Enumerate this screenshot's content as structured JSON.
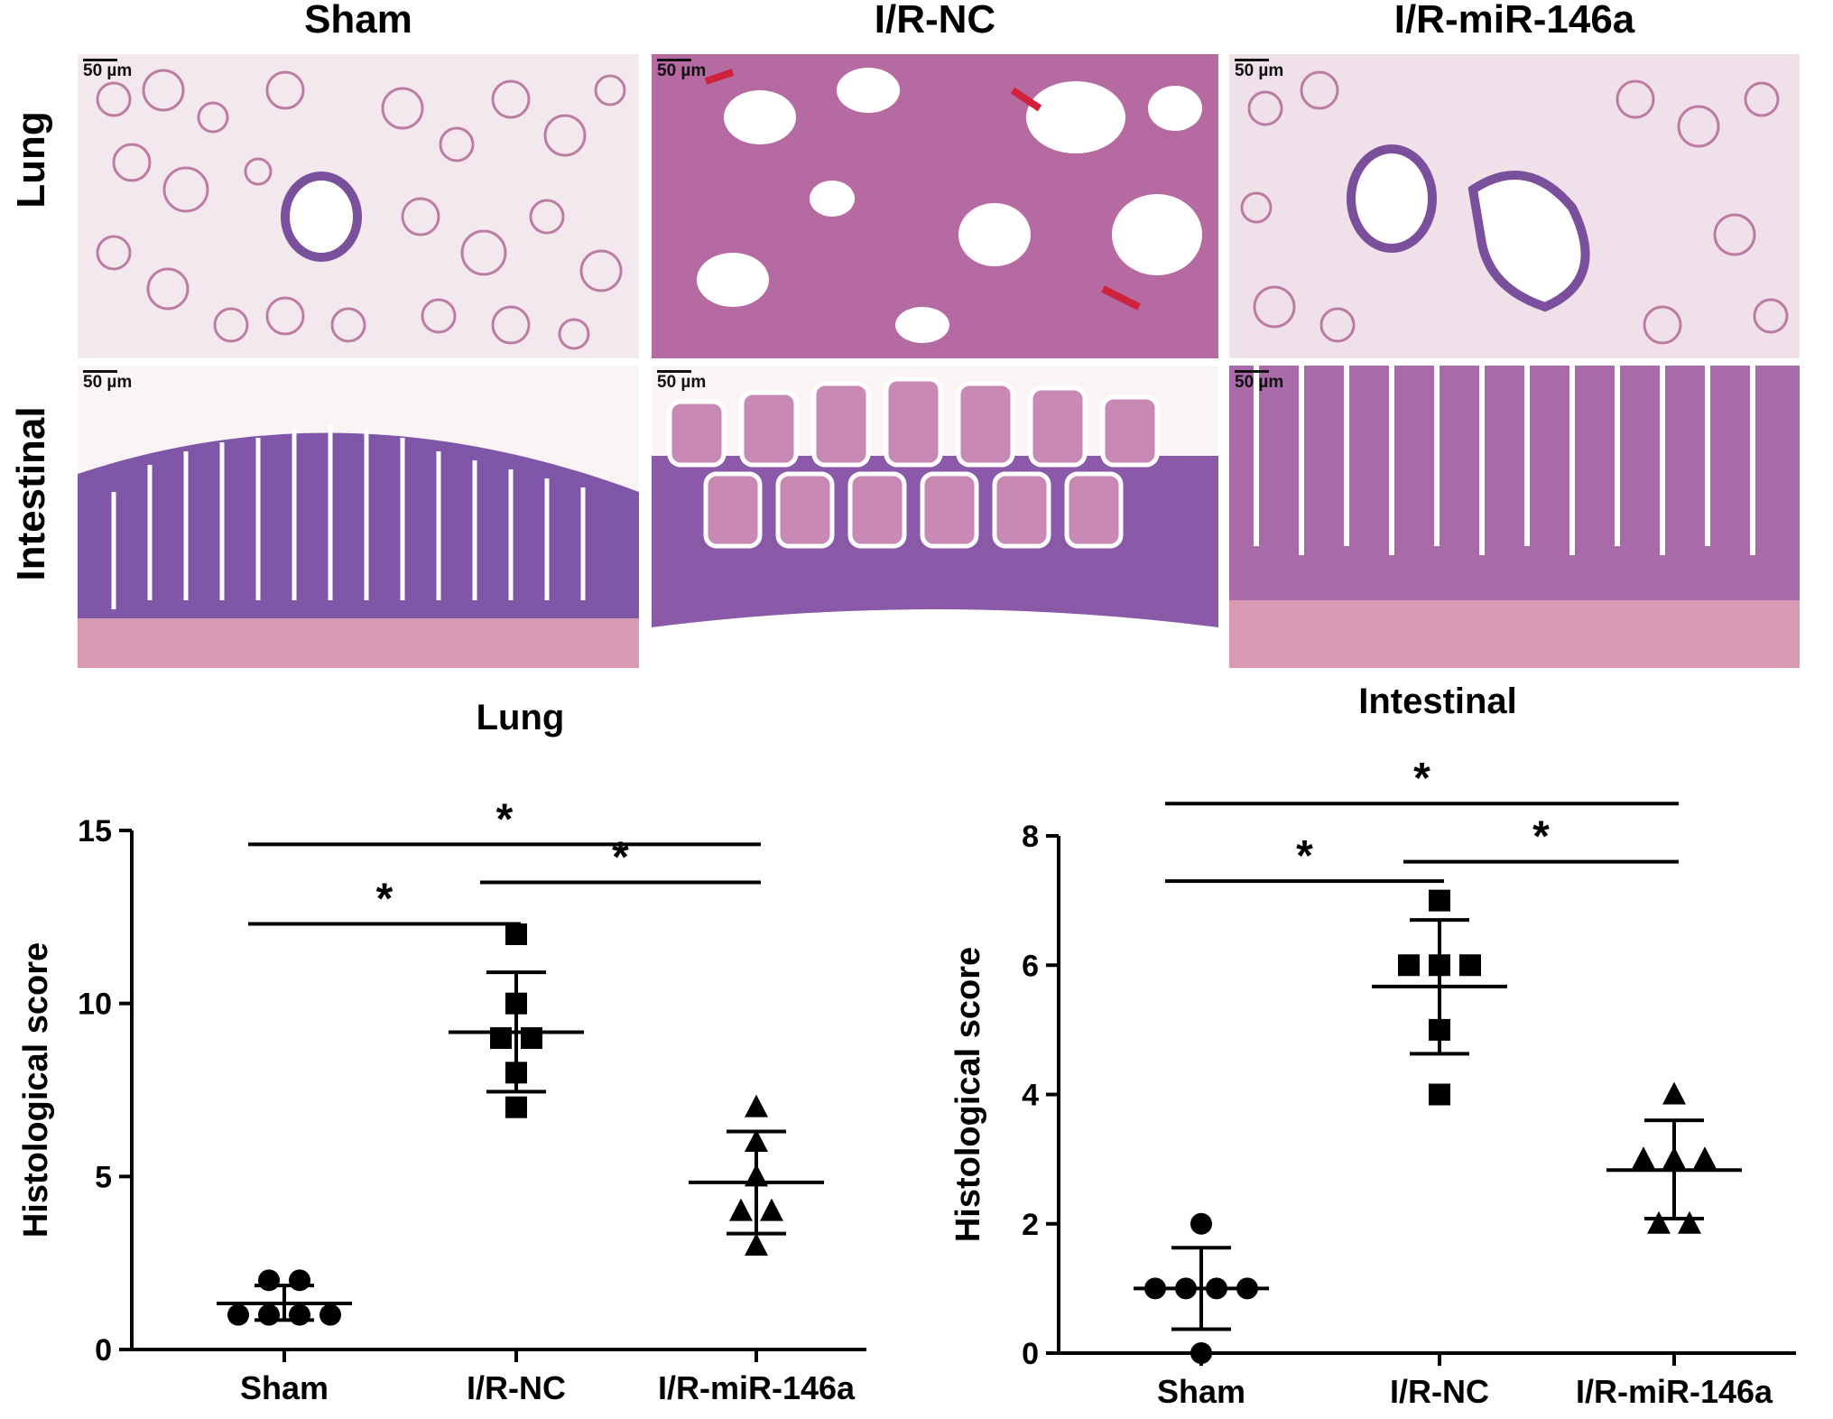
{
  "columns": [
    "Sham",
    "I/R-NC",
    "I/R-miR-146a"
  ],
  "rows": [
    "Lung",
    "Intestinal"
  ],
  "scale_bar": "50 µm",
  "chart_data": [
    {
      "type": "scatter",
      "title": "Lung",
      "xlabel": "",
      "ylabel": "Histological score",
      "categories": [
        "Sham",
        "I/R-NC",
        "I/R-miR-146a"
      ],
      "ylim": [
        0,
        15
      ],
      "yticks": [
        "0",
        "5",
        "10",
        "15"
      ],
      "series": [
        {
          "group": "Sham",
          "marker": "circle",
          "points": [
            1,
            1,
            1,
            1,
            2,
            2
          ],
          "mean": 1.33,
          "sd_low": 0.85,
          "sd_high": 1.85
        },
        {
          "group": "I/R-NC",
          "marker": "square",
          "points": [
            7,
            8,
            9,
            9,
            10,
            12
          ],
          "mean": 9.17,
          "sd_low": 7.45,
          "sd_high": 10.9
        },
        {
          "group": "I/R-miR-146a",
          "marker": "triangle",
          "points": [
            3,
            4,
            4,
            5,
            6,
            7
          ],
          "mean": 4.83,
          "sd_low": 3.35,
          "sd_high": 6.3
        }
      ],
      "significance": [
        {
          "from": "Sham",
          "to": "I/R-NC",
          "y": 12.3,
          "label": "*"
        },
        {
          "from": "I/R-NC",
          "to": "I/R-miR-146a",
          "y": 13.5,
          "label": "*"
        },
        {
          "from": "Sham",
          "to": "I/R-miR-146a",
          "y": 14.6,
          "label": "*"
        }
      ]
    },
    {
      "type": "scatter",
      "title": "Intestinal",
      "xlabel": "",
      "ylabel": "Histological score",
      "categories": [
        "Sham",
        "I/R-NC",
        "I/R-miR-146a"
      ],
      "ylim": [
        0,
        8
      ],
      "yticks": [
        "0",
        "2",
        "4",
        "6",
        "8"
      ],
      "series": [
        {
          "group": "Sham",
          "marker": "circle",
          "points": [
            0,
            1,
            1,
            1,
            1,
            2
          ],
          "mean": 1.0,
          "sd_low": 0.37,
          "sd_high": 1.63
        },
        {
          "group": "I/R-NC",
          "marker": "square",
          "points": [
            4,
            5,
            6,
            6,
            6,
            7
          ],
          "mean": 5.67,
          "sd_low": 4.63,
          "sd_high": 6.7
        },
        {
          "group": "I/R-miR-146a",
          "marker": "triangle",
          "points": [
            2,
            2,
            3,
            3,
            3,
            4
          ],
          "mean": 2.83,
          "sd_low": 2.08,
          "sd_high": 3.6
        }
      ],
      "significance": [
        {
          "from": "Sham",
          "to": "I/R-NC",
          "y": 7.3,
          "label": "*"
        },
        {
          "from": "I/R-NC",
          "to": "I/R-miR-146a",
          "y": 7.6,
          "label": "*"
        },
        {
          "from": "Sham",
          "to": "I/R-miR-146a",
          "y": 8.5,
          "label": "*"
        }
      ]
    }
  ]
}
